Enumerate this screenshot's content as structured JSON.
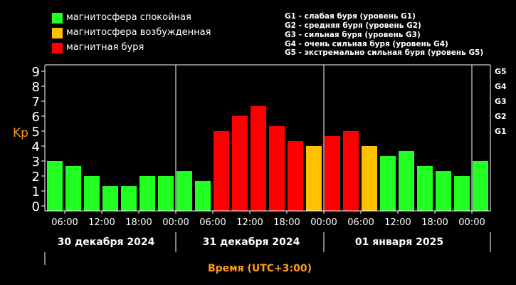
{
  "legend": [
    {
      "label": "магнитосфера спокойная",
      "color": "#22ff22"
    },
    {
      "label": "магнитосфера возбужденная",
      "color": "#ffc000"
    },
    {
      "label": "магнитная буря",
      "color": "#ff0000"
    }
  ],
  "g_descriptions": [
    "G1 - слабая буря (уровень G1)",
    "G2 - средняя буря (уровень G2)",
    "G3 - сильная буря (уровень G3)",
    "G4 - очень сильная буря (уровень G4)",
    "G5 - экстремально сильная буря (уровень G5)"
  ],
  "chart_data": {
    "type": "bar",
    "ylabel": "Kp",
    "xlabel": "Время (UTC+3:00)",
    "ylim": [
      0,
      9.5
    ],
    "yticks": [
      "0",
      "1",
      "2",
      "3",
      "4",
      "5",
      "6",
      "7",
      "8",
      "9"
    ],
    "right_ticks": [
      {
        "label": "G1",
        "value": 5
      },
      {
        "label": "G2",
        "value": 6
      },
      {
        "label": "G3",
        "value": 7
      },
      {
        "label": "G4",
        "value": 8
      },
      {
        "label": "G5",
        "value": 9
      }
    ],
    "xtick_labels": [
      "06:00",
      "12:00",
      "18:00",
      "00:00",
      "06:00",
      "12:00",
      "18:00",
      "00:00",
      "06:00",
      "12:00",
      "18:00",
      "00:00"
    ],
    "days": [
      "30 декабря 2024",
      "31 декабря 2024",
      "01 января 2025"
    ],
    "grid": false,
    "values": [
      3.0,
      2.67,
      2.0,
      1.33,
      1.33,
      2.0,
      2.0,
      2.33,
      1.67,
      5.0,
      6.0,
      6.67,
      5.33,
      4.33,
      4.0,
      4.67,
      5.0,
      4.0,
      3.33,
      3.67,
      2.67,
      2.33,
      2.0,
      3.0
    ],
    "levels": [
      "quiet",
      "quiet",
      "quiet",
      "quiet",
      "quiet",
      "quiet",
      "quiet",
      "quiet",
      "quiet",
      "storm",
      "storm",
      "storm",
      "storm",
      "storm",
      "active",
      "storm",
      "storm",
      "active",
      "quiet",
      "quiet",
      "quiet",
      "quiet",
      "quiet",
      "quiet"
    ]
  },
  "colors": {
    "quiet": "#22ff22",
    "active": "#ffc000",
    "storm": "#ff0000",
    "axis_label": "#ff9a1a"
  }
}
